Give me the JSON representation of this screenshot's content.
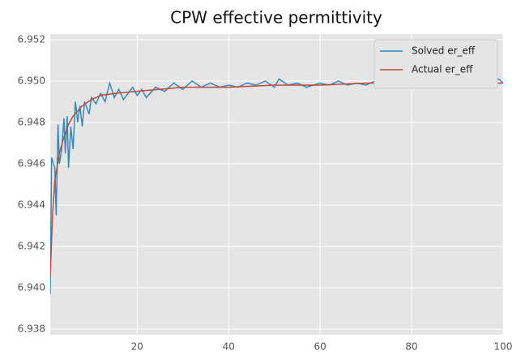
{
  "chart_data": {
    "type": "line",
    "title": "CPW effective permittivity",
    "xlim": [
      1,
      100
    ],
    "xticks": [
      20,
      40,
      60,
      80,
      100
    ],
    "ylim": [
      6.93773,
      6.95227
    ],
    "yticks": [
      {
        "value": 6.938,
        "label": "6.938"
      },
      {
        "value": 6.94,
        "label": "6.940"
      },
      {
        "value": 6.942,
        "label": "6.942"
      },
      {
        "value": 6.944,
        "label": "6.944"
      },
      {
        "value": 6.946,
        "label": "6.946"
      },
      {
        "value": 6.948,
        "label": "6.948"
      },
      {
        "value": 6.95,
        "label": "6.950"
      },
      {
        "value": 6.952,
        "label": "6.952"
      }
    ],
    "grid": true,
    "legend": "upper right",
    "series": [
      {
        "name": "Solved er_eff",
        "color": "#348abd",
        "x": [
          1,
          1.3,
          2,
          2.3,
          2.7,
          3,
          3.5,
          4,
          4.3,
          4.7,
          5,
          5.5,
          6,
          6.5,
          7,
          7.5,
          8,
          8.5,
          9,
          9.5,
          10,
          11,
          12,
          13,
          14,
          15,
          16,
          17,
          18,
          19,
          20,
          21,
          22,
          24,
          26,
          28,
          30,
          32,
          34,
          36,
          38,
          40,
          42,
          44,
          46,
          48,
          50,
          51,
          53,
          55,
          57,
          60,
          62,
          64,
          66,
          68,
          70,
          72,
          74,
          76,
          78,
          80,
          82,
          84,
          86,
          88,
          90,
          92,
          94,
          96,
          98,
          99,
          100
        ],
        "values": [
          6.9397,
          6.9463,
          6.9458,
          6.9435,
          6.9479,
          6.946,
          6.9467,
          6.9482,
          6.9465,
          6.9483,
          6.9458,
          6.9478,
          6.9467,
          6.949,
          6.948,
          6.9488,
          6.9478,
          6.949,
          6.9487,
          6.9484,
          6.9492,
          6.9489,
          6.9494,
          6.949,
          6.9499,
          6.9492,
          6.9496,
          6.9491,
          6.9494,
          6.9497,
          6.9493,
          6.9496,
          6.9492,
          6.9497,
          6.9495,
          6.9499,
          6.9496,
          6.95,
          6.9497,
          6.9499,
          6.9497,
          6.9498,
          6.9497,
          6.9499,
          6.9498,
          6.95,
          6.9497,
          6.9501,
          6.9498,
          6.9499,
          6.9497,
          6.9499,
          6.9498,
          6.95,
          6.9498,
          6.9499,
          6.9498,
          6.95,
          6.9498,
          6.9499,
          6.9498,
          6.9499,
          6.9498,
          6.9499,
          6.9498,
          6.95,
          6.9499,
          6.9498,
          6.95,
          6.9498,
          6.9499,
          6.9501,
          6.9499
        ]
      },
      {
        "name": "Actual er_eff",
        "color": "#c0493b",
        "x": [
          1,
          1.5,
          2,
          3,
          4,
          5,
          6,
          8,
          10,
          12,
          15,
          20,
          25,
          30,
          40,
          50,
          60,
          70,
          80,
          100
        ],
        "values": [
          6.9405,
          6.9435,
          6.9452,
          6.9465,
          6.9473,
          6.9479,
          6.9483,
          6.9488,
          6.9491,
          6.9493,
          6.9494,
          6.9495,
          6.9496,
          6.9497,
          6.9497,
          6.9498,
          6.9498,
          6.9499,
          6.9499,
          6.9499
        ]
      }
    ]
  }
}
